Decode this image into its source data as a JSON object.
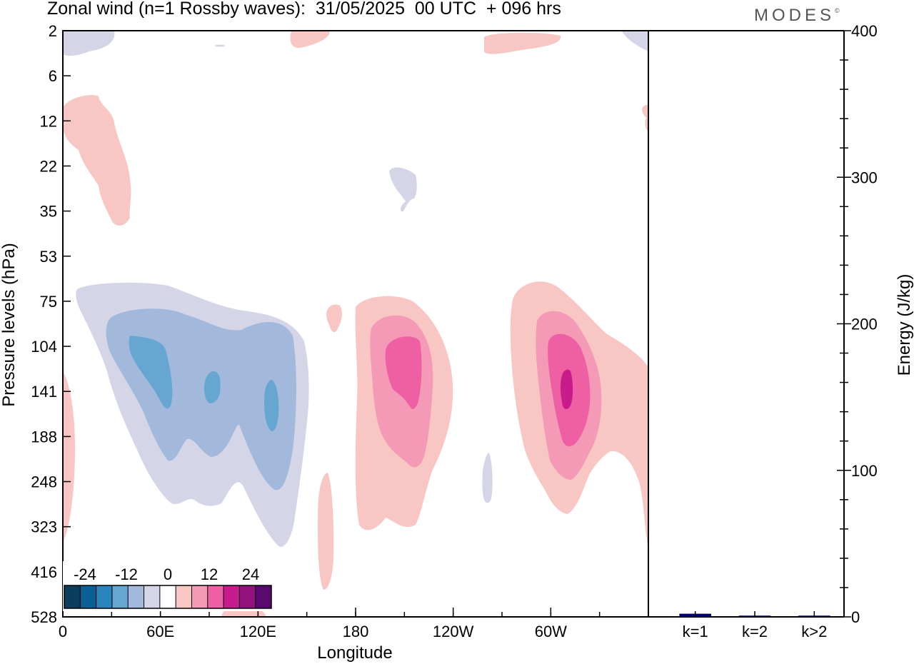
{
  "header": {
    "title": "Zonal wind (n=1 Rossby waves):  31/05/2025  00 UTC  + 096 hrs",
    "brand": "MODES",
    "brand_mark": "©"
  },
  "chart_data": [
    {
      "type": "heatmap",
      "title": "Zonal wind (n=1 Rossby waves):  31/05/2025  00 UTC  + 096 hrs",
      "xlabel": "Longitude",
      "ylabel": "Pressure levels (hPa)",
      "x_ticks": [
        "0",
        "60E",
        "120E",
        "180",
        "120W",
        "60W"
      ],
      "x_tick_degrees": [
        0,
        60,
        120,
        180,
        240,
        300
      ],
      "xlim_degrees": [
        0,
        360
      ],
      "y_ticks": [
        "2",
        "6",
        "12",
        "22",
        "35",
        "53",
        "75",
        "104",
        "141",
        "188",
        "248",
        "323",
        "416",
        "528"
      ],
      "y_scale": "model levels, top = 2 hPa, bottom = 528 hPa",
      "grid": false,
      "colorbar": {
        "placement": "bottom-left",
        "labels": [
          "-24",
          "-12",
          "0",
          "12",
          "24"
        ],
        "levels": [
          -30,
          -25,
          -20,
          -15,
          -10,
          -5,
          0,
          5,
          10,
          15,
          20,
          25,
          30
        ],
        "colors": [
          "#0b3d5c",
          "#0a5f94",
          "#2a85bf",
          "#66a6d0",
          "#a2b9dc",
          "#d4d6e8",
          "#ffffff",
          "#f9c7c3",
          "#f59ab6",
          "#ee5fa3",
          "#c81c8c",
          "#93117d",
          "#5a0a6e"
        ]
      },
      "features": [
        {
          "name": "negative anomaly 40E–125E",
          "lon_center": 75,
          "pressure_level": "141",
          "min_value": -20
        },
        {
          "name": "positive anomaly near 160W",
          "lon_center": 200,
          "pressure_level": "141",
          "max_value": 15
        },
        {
          "name": "positive anomaly near 50W",
          "lon_center": 308,
          "pressure_level": "141",
          "max_value": 20
        }
      ]
    },
    {
      "type": "bar",
      "categories": [
        "k=1",
        "k=2",
        "k>2"
      ],
      "values": [
        2,
        0.5,
        0.5
      ],
      "ylabel": "Energy (J/kg)",
      "ylim": [
        0,
        400
      ],
      "y_ticks": [
        "0",
        "100",
        "200",
        "300",
        "400"
      ],
      "bar_color": "#000080"
    }
  ]
}
